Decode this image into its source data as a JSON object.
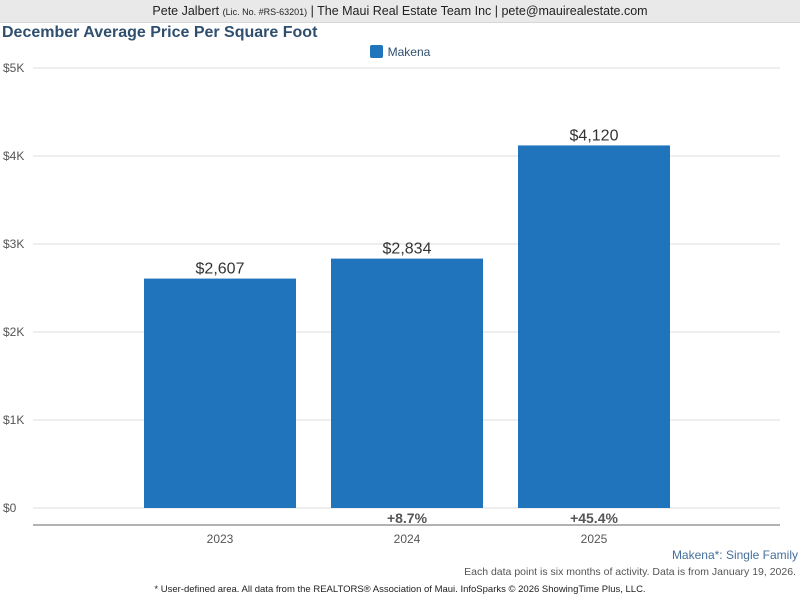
{
  "header": {
    "agent_name": "Pete Jalbert",
    "license": "(Lic. No. #RS-63201)",
    "company_email": "| The Maui Real Estate Team Inc | pete@mauirealestate.com"
  },
  "colors": {
    "bar": "#1f74bc",
    "grid": "#dddddd",
    "axis": "#666666"
  },
  "chart_data": {
    "type": "bar",
    "title": "December Average Price Per Square Foot",
    "categories": [
      "2023",
      "2024",
      "2025"
    ],
    "series": [
      {
        "name": "Makena",
        "values": [
          2607,
          2834,
          4120
        ]
      }
    ],
    "data_labels": [
      "$2,607",
      "$2,834",
      "$4,120"
    ],
    "change_labels": [
      "",
      "+8.7%",
      "+45.4%"
    ],
    "ylim": [
      0,
      5000
    ],
    "yticks": [
      0,
      1000,
      2000,
      3000,
      4000,
      5000
    ],
    "ytick_labels": [
      "$0",
      "$1K",
      "$2K",
      "$3K",
      "$4K",
      "$5K"
    ],
    "grid": true,
    "legend": "top-center"
  },
  "footer": {
    "area_label": "Makena*: Single Family",
    "note": "Each data point is six months of activity. Data is from January 19, 2026.",
    "source": "* User-defined area. All data from the REALTORS® Association of Maui. InfoSparks © 2026 ShowingTime Plus, LLC."
  }
}
